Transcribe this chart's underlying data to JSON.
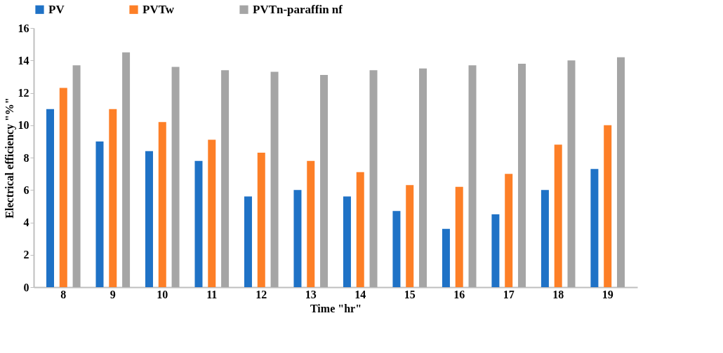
{
  "chart_data": {
    "type": "bar",
    "xlabel": "Time \"hr\"",
    "ylabel": "Electrical efficiency \"%\"",
    "categories": [
      "8",
      "9",
      "10",
      "11",
      "12",
      "13",
      "14",
      "15",
      "16",
      "17",
      "18",
      "19"
    ],
    "series": [
      {
        "name": "PV",
        "color": "#1f72c6",
        "values": [
          11,
          9,
          8.4,
          7.8,
          5.6,
          6,
          5.6,
          4.7,
          3.6,
          4.5,
          6,
          7.3
        ]
      },
      {
        "name": "PVTw",
        "color": "#fd7f27",
        "values": [
          12.3,
          11,
          10.2,
          9.1,
          8.3,
          7.8,
          7.1,
          6.3,
          6.2,
          7,
          8.8,
          10
        ]
      },
      {
        "name": "PVTn-paraffin nf",
        "color": "#a5a5a5",
        "values": [
          13.7,
          14.5,
          13.6,
          13.4,
          13.3,
          13.1,
          13.4,
          13.5,
          13.7,
          13.8,
          14,
          14.2
        ]
      }
    ],
    "ylim": [
      0,
      16
    ],
    "yticks": [
      0,
      2,
      4,
      6,
      8,
      10,
      12,
      14,
      16
    ],
    "grid": false,
    "legend": "top"
  }
}
